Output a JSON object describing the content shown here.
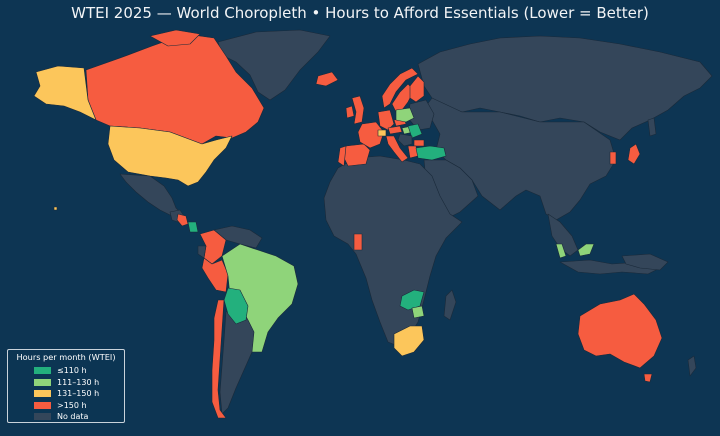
{
  "title": "WTEI 2025 — World Choropleth • Hours to Afford Essentials (Lower = Better)",
  "colors": {
    "ocean": "#0d3553",
    "no_data": "#34465a",
    "border": "#1a2a3a",
    "le110": "#23b07d",
    "111_130": "#8fd47a",
    "131_150": "#fcc65b",
    "gt150": "#f65c40"
  },
  "legend": {
    "title": "Hours per month (WTEI)",
    "items": [
      {
        "label": "≤110 h",
        "color": "#23b07d"
      },
      {
        "label": "111–130 h",
        "color": "#8fd47a"
      },
      {
        "label": "131–150 h",
        "color": "#fcc65b"
      },
      {
        "label": ">150 h",
        "color": "#f65c40"
      },
      {
        "label": "No data",
        "color": "#34465a"
      }
    ]
  },
  "regions": [
    {
      "name": "Canada",
      "category": ">150 h"
    },
    {
      "name": "Alaska (United States)",
      "category": "131–150 h"
    },
    {
      "name": "United States",
      "category": "131–150 h"
    },
    {
      "name": "Mexico",
      "category": "No data"
    },
    {
      "name": "Greenland",
      "category": "No data"
    },
    {
      "name": "Costa Rica",
      "category": ">150 h"
    },
    {
      "name": "Panama",
      "category": "≤110 h"
    },
    {
      "name": "Colombia",
      "category": ">150 h"
    },
    {
      "name": "Peru",
      "category": ">150 h"
    },
    {
      "name": "Brazil",
      "category": "111–130 h"
    },
    {
      "name": "Bolivia",
      "category": "≤110 h"
    },
    {
      "name": "Chile",
      "category": ">150 h"
    },
    {
      "name": "Argentina",
      "category": "No data"
    },
    {
      "name": "Iceland",
      "category": ">150 h"
    },
    {
      "name": "United Kingdom",
      "category": ">150 h"
    },
    {
      "name": "Ireland",
      "category": ">150 h"
    },
    {
      "name": "Norway",
      "category": ">150 h"
    },
    {
      "name": "Sweden",
      "category": ">150 h"
    },
    {
      "name": "Finland",
      "category": ">150 h"
    },
    {
      "name": "Spain",
      "category": ">150 h"
    },
    {
      "name": "Portugal",
      "category": ">150 h"
    },
    {
      "name": "France",
      "category": ">150 h"
    },
    {
      "name": "Germany",
      "category": ">150 h"
    },
    {
      "name": "Italy",
      "category": ">150 h"
    },
    {
      "name": "Switzerland",
      "category": "131–150 h"
    },
    {
      "name": "Austria",
      "category": ">150 h"
    },
    {
      "name": "Poland",
      "category": "111–130 h"
    },
    {
      "name": "Czechia",
      "category": ">150 h"
    },
    {
      "name": "Hungary",
      "category": "111–130 h"
    },
    {
      "name": "Romania",
      "category": "≤110 h"
    },
    {
      "name": "Bulgaria",
      "category": ">150 h"
    },
    {
      "name": "Greece",
      "category": ">150 h"
    },
    {
      "name": "Turkey",
      "category": "≤110 h"
    },
    {
      "name": "Russia",
      "category": "No data"
    },
    {
      "name": "South Korea",
      "category": ">150 h"
    },
    {
      "name": "Japan",
      "category": ">150 h"
    },
    {
      "name": "Nigeria",
      "category": ">150 h"
    },
    {
      "name": "Zambia",
      "category": "≤110 h"
    },
    {
      "name": "Zimbabwe",
      "category": "111–130 h"
    },
    {
      "name": "South Africa",
      "category": "131–150 h"
    },
    {
      "name": "Malaysia",
      "category": "111–130 h"
    },
    {
      "name": "Australia",
      "category": ">150 h"
    },
    {
      "name": "New Zealand",
      "category": ">150 h"
    }
  ]
}
